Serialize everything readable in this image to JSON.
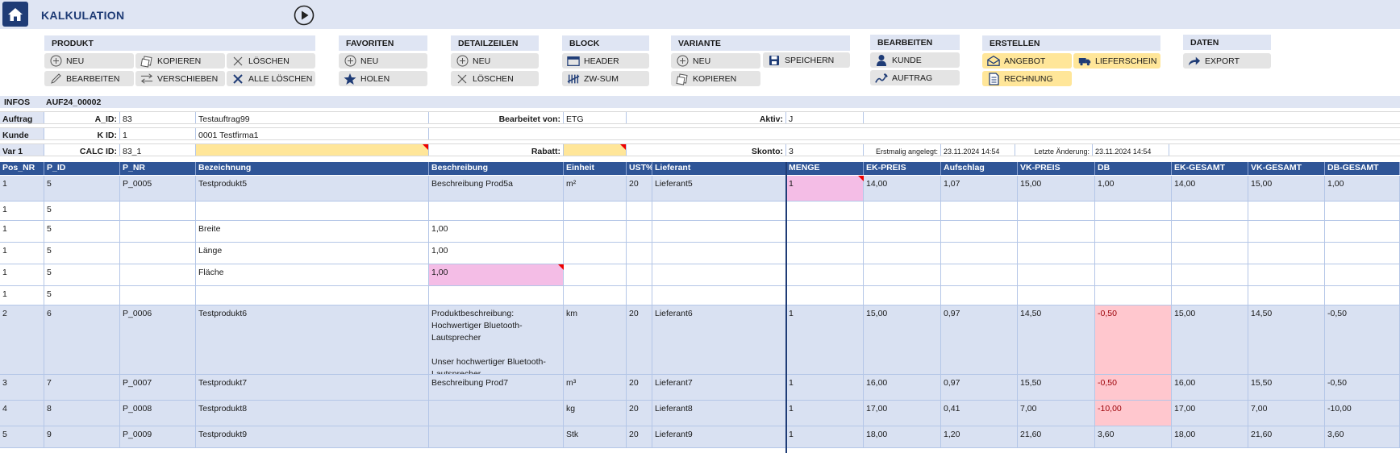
{
  "app": {
    "title": "KALKULATION"
  },
  "groups": {
    "produkt": "PRODUKT",
    "favoriten": "FAVORITEN",
    "detailzeilen": "DETAILZEILEN",
    "block": "BLOCK",
    "variante": "VARIANTE",
    "bearbeiten": "BEARBEITEN",
    "erstellen": "ERSTELLEN",
    "daten": "DATEN"
  },
  "buttons": {
    "produkt_neu": "NEU",
    "produkt_kopieren": "KOPIEREN",
    "produkt_loeschen": "LÖSCHEN",
    "produkt_bearbeiten": "BEARBEITEN",
    "produkt_verschieben": "VERSCHIEBEN",
    "produkt_alle_loeschen": "ALLE LÖSCHEN",
    "fav_neu": "NEU",
    "fav_holen": "HOLEN",
    "detail_neu": "NEU",
    "detail_loeschen": "LÖSCHEN",
    "block_header": "HEADER",
    "block_zwsum": "ZW-SUM",
    "var_neu": "NEU",
    "var_speichern": "SPEICHERN",
    "var_kopieren": "KOPIEREN",
    "bearb_kunde": "KUNDE",
    "bearb_auftrag": "AUFTRAG",
    "erst_angebot": "ANGEBOT",
    "erst_lieferschein": "LIEFERSCHEIN",
    "erst_rechnung": "RECHNUNG",
    "daten_export": "EXPORT"
  },
  "infos": {
    "label": "INFOS",
    "code": "AUF24_00002",
    "auftrag_label": "Auftrag",
    "a_id_label": "A_ID:",
    "a_id": "83",
    "auftrag_name": "Testauftrag99",
    "bearbeitet_label": "Bearbeitet von:",
    "bearbeitet": "ETG",
    "aktiv_label": "Aktiv:",
    "aktiv": "J",
    "kunde_label": "Kunde",
    "k_id_label": "K ID:",
    "k_id": "1",
    "kunde_name": "0001 Testfirma1",
    "var_label": "Var 1",
    "calc_id_label": "CALC ID:",
    "calc_id": "83_1",
    "rabatt_label": "Rabatt:",
    "rabatt": "",
    "skonto_label": "Skonto:",
    "skonto": "3",
    "erstmalig_label": "Erstmalig angelegt:",
    "erstmalig": "23.11.2024 14:54",
    "letzte_label": "Letzte Änderung:",
    "letzte": "23.11.2024 14:54"
  },
  "table": {
    "headers": [
      "Pos_NR",
      "P_ID",
      "P_NR",
      "Bezeichnung",
      "Beschreibung",
      "Einheit",
      "UST%",
      "Lieferant",
      "MENGE",
      "EK-PREIS",
      "Aufschlag",
      "VK-PREIS",
      "DB",
      "EK-GESAMT",
      "VK-GESAMT",
      "DB-GESAMT"
    ],
    "rows": [
      {
        "cells": [
          "1",
          "5",
          "P_0005",
          "Testprodukt5",
          "Beschreibung Prod5a",
          "m²",
          "20",
          "Lieferant5",
          "1",
          "14,00",
          "1,07",
          "15,00",
          "1,00",
          "14,00",
          "15,00",
          "1,00"
        ]
      },
      {
        "cells": [
          "1",
          "5",
          "",
          "",
          "",
          "",
          "",
          "",
          "",
          "",
          "",
          "",
          "",
          "",
          "",
          ""
        ]
      },
      {
        "cells": [
          "1",
          "5",
          "",
          "Breite",
          "1,00",
          "",
          "",
          "",
          "",
          "",
          "",
          "",
          "",
          "",
          "",
          ""
        ]
      },
      {
        "cells": [
          "1",
          "5",
          "",
          "Länge",
          "1,00",
          "",
          "",
          "",
          "",
          "",
          "",
          "",
          "",
          "",
          "",
          ""
        ]
      },
      {
        "cells": [
          "1",
          "5",
          "",
          "Fläche",
          "1,00",
          "",
          "",
          "",
          "",
          "",
          "",
          "",
          "",
          "",
          "",
          ""
        ]
      },
      {
        "cells": [
          "1",
          "5",
          "",
          "",
          "",
          "",
          "",
          "",
          "",
          "",
          "",
          "",
          "",
          "",
          "",
          ""
        ]
      },
      {
        "cells": [
          "2",
          "6",
          "P_0006",
          "Testprodukt6",
          "Produktbeschreibung:\nHochwertiger Bluetooth-Lautsprecher\n\nUnser hochwertiger Bluetooth-Lautsprecher",
          "km",
          "20",
          "Lieferant6",
          "1",
          "15,00",
          "0,97",
          "14,50",
          "-0,50",
          "15,00",
          "14,50",
          "-0,50"
        ]
      },
      {
        "cells": [
          "3",
          "7",
          "P_0007",
          "Testprodukt7",
          "Beschreibung Prod7",
          "m³",
          "20",
          "Lieferant7",
          "1",
          "16,00",
          "0,97",
          "15,50",
          "-0,50",
          "16,00",
          "15,50",
          "-0,50"
        ]
      },
      {
        "cells": [
          "4",
          "8",
          "P_0008",
          "Testprodukt8",
          "",
          "kg",
          "20",
          "Lieferant8",
          "1",
          "17,00",
          "0,41",
          "7,00",
          "-10,00",
          "17,00",
          "7,00",
          "-10,00"
        ]
      },
      {
        "cells": [
          "5",
          "9",
          "P_0009",
          "Testprodukt9",
          "",
          "Stk",
          "20",
          "Lieferant9",
          "1",
          "18,00",
          "1,20",
          "21,60",
          "3,60",
          "18,00",
          "21,60",
          "3,60"
        ]
      }
    ]
  },
  "colors": {
    "accent": "#1f3c76",
    "header_bg": "#2f5597",
    "row_band": "#d9e1f2",
    "highlight_pink": "#f4bde6",
    "negative_bg": "#ffc7ce",
    "negative_text": "#9c0006",
    "yellow": "#ffe699"
  }
}
